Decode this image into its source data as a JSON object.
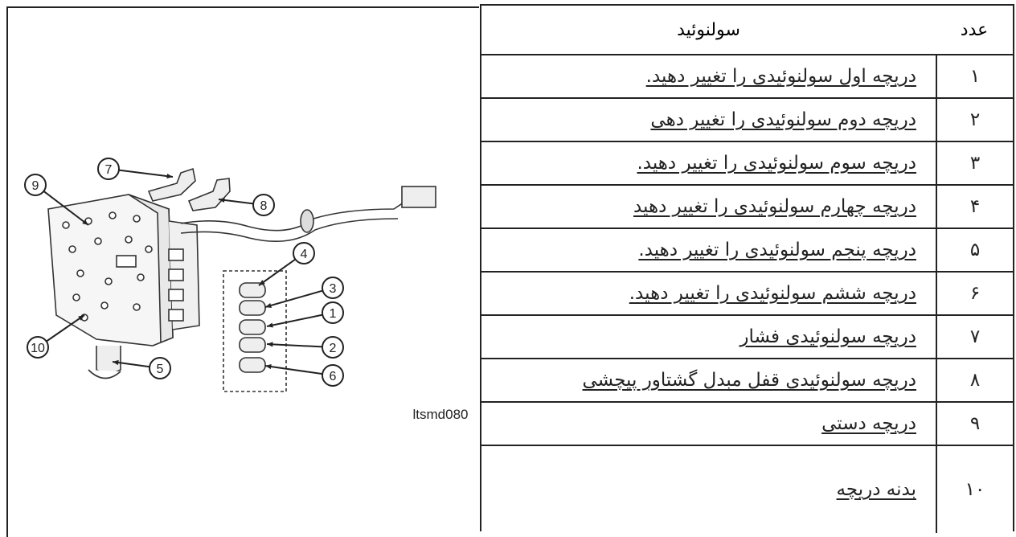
{
  "diagram": {
    "callouts": [
      "7",
      "9",
      "8",
      "4",
      "3",
      "1",
      "2",
      "6",
      "10",
      "5"
    ],
    "caption": "ltsmd080"
  },
  "table": {
    "header": {
      "title": "سولنوئید",
      "number": "عدد"
    },
    "rows": [
      {
        "number": "۱",
        "text": "دریچه اول سولنوئیدی را تغییر دهید."
      },
      {
        "number": "۲",
        "text": "دریچه دوم سولنوئیدی را تغییر دهی"
      },
      {
        "number": "۳",
        "text": "دریچه سوم سولنوئیدی را تغییر دهید."
      },
      {
        "number": "۴",
        "text": "دریچه چهارم سولنوئیدی را تغییر دهید"
      },
      {
        "number": "۵",
        "text": "دریچه پنجم سولنوئیدی را تغییر دهید."
      },
      {
        "number": "۶",
        "text": "دریچه ششم سولنوئیدی را تغییر دهید."
      },
      {
        "number": "۷",
        "text": "دریچه سولنوئیدی فشار"
      },
      {
        "number": "۸",
        "text": "دریچه سولنوئیدی قفل مبدل گشتاور پیچشی"
      },
      {
        "number": "۹",
        "text": "دریچه دستی"
      },
      {
        "number": "۱۰",
        "text": "بدنه دریچه"
      }
    ]
  }
}
